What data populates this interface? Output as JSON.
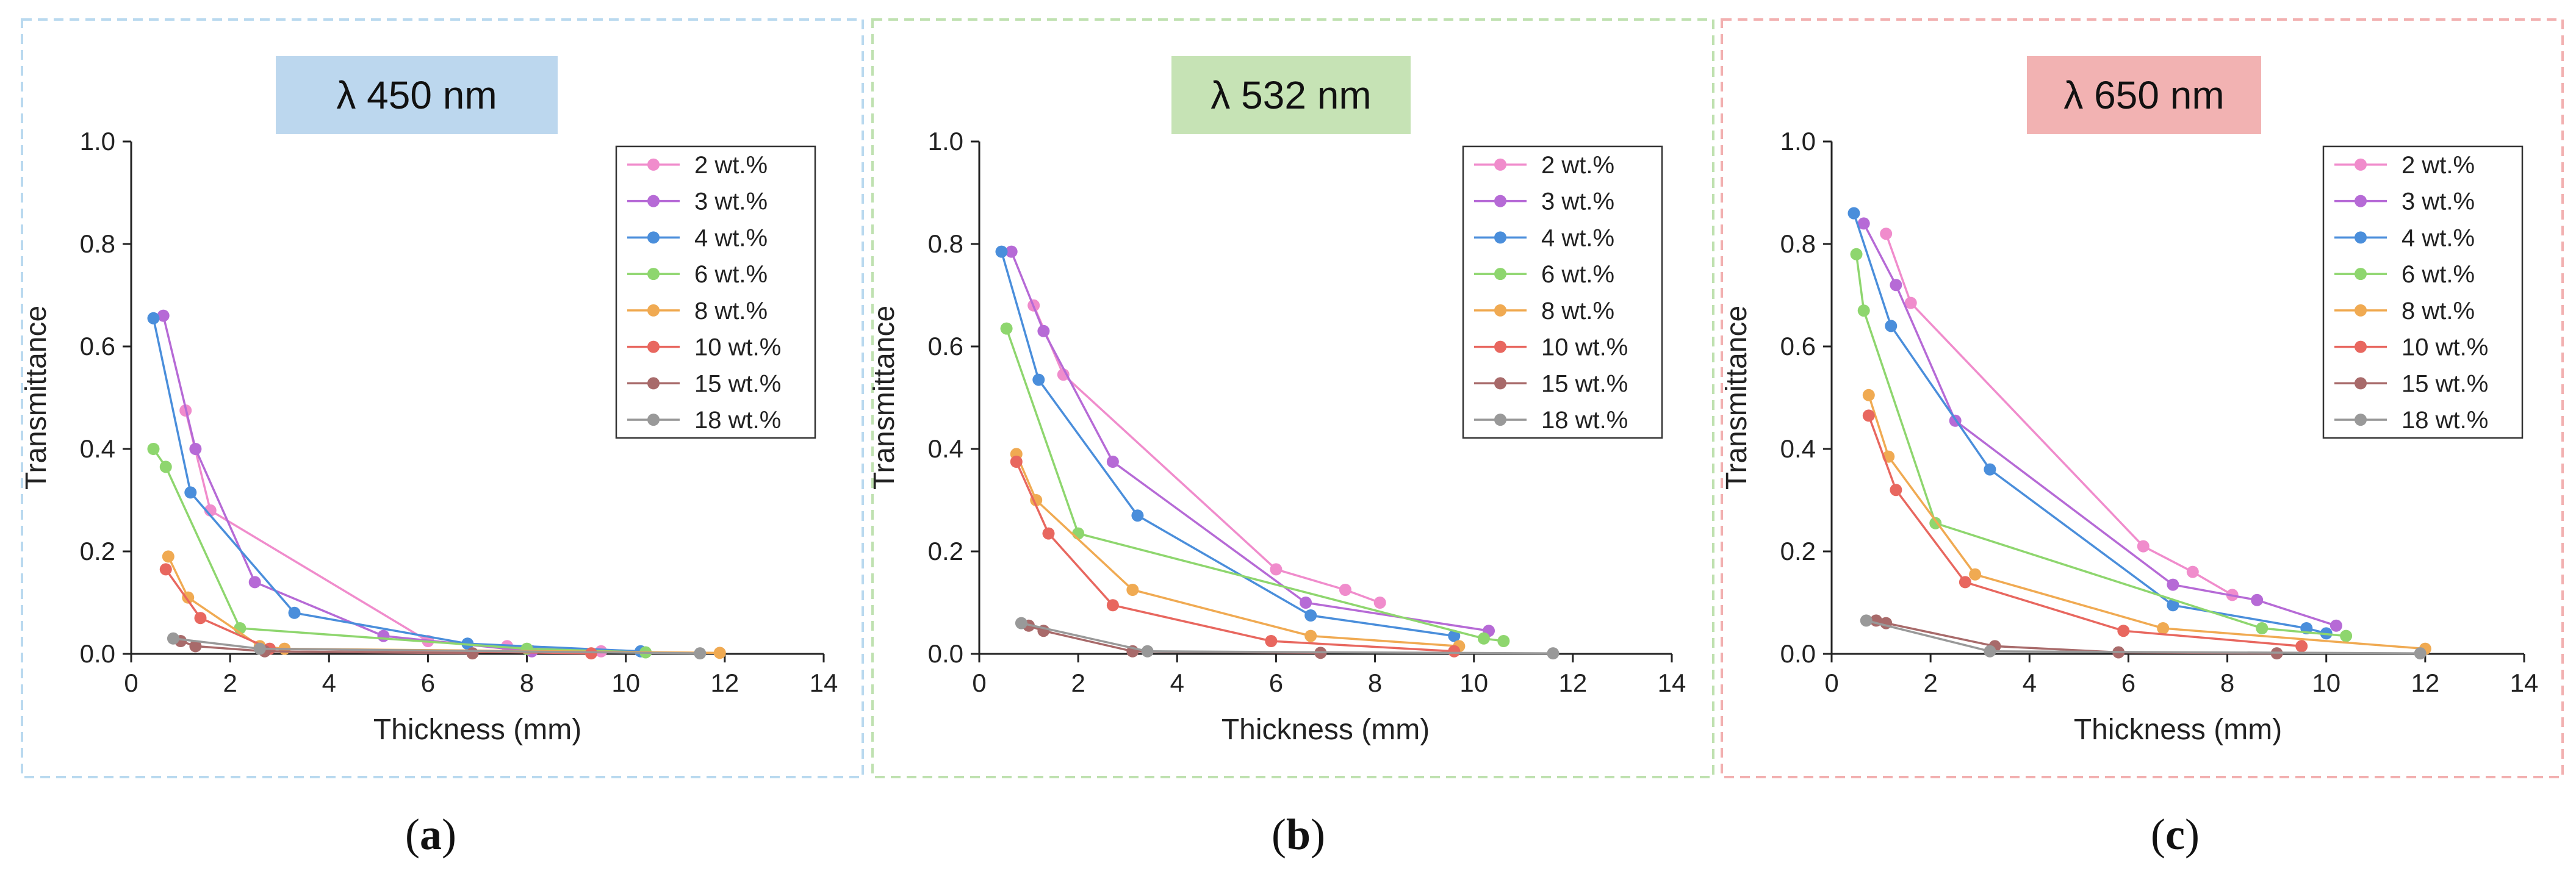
{
  "figure": {
    "panels": [
      {
        "label_open": "(",
        "label_letter": "a",
        "label_close": ")",
        "frame_color": "#b9d9ef",
        "title_bg": "#bcd7ee"
      },
      {
        "label_open": "(",
        "label_letter": "b",
        "label_close": ")",
        "frame_color": "#bfe1b0",
        "title_bg": "#c6e3b5"
      },
      {
        "label_open": "(",
        "label_letter": "c",
        "label_close": ")",
        "frame_color": "#f2b0b0",
        "title_bg": "#f2b2b2"
      }
    ]
  },
  "chart_data": [
    {
      "type": "line",
      "title": "λ 450 nm",
      "xlabel": "Thickness (mm)",
      "ylabel": "Transmittance",
      "xlim": [
        0,
        14
      ],
      "ylim": [
        0,
        1.0
      ],
      "xticks": [
        "0",
        "2",
        "4",
        "6",
        "8",
        "10",
        "12",
        "14"
      ],
      "yticks": [
        "0.0",
        "0.2",
        "0.4",
        "0.6",
        "0.8",
        "1.0"
      ],
      "legend_position": "top-right",
      "series": [
        {
          "name": "2 wt.%",
          "color": "#f08ccc",
          "x": [
            1.1,
            1.6,
            6.0,
            7.6,
            9.5
          ],
          "y": [
            0.475,
            0.28,
            0.025,
            0.015,
            0.005
          ]
        },
        {
          "name": "3 wt.%",
          "color": "#b66ad6",
          "x": [
            0.65,
            1.3,
            2.5,
            5.1,
            8.1
          ],
          "y": [
            0.66,
            0.4,
            0.14,
            0.035,
            0.005
          ]
        },
        {
          "name": "4 wt.%",
          "color": "#4a8edb",
          "x": [
            0.45,
            1.2,
            3.3,
            6.8,
            10.3
          ],
          "y": [
            0.655,
            0.315,
            0.08,
            0.02,
            0.005
          ]
        },
        {
          "name": "6 wt.%",
          "color": "#8ed66e",
          "x": [
            0.45,
            0.7,
            2.2,
            8.0,
            10.4
          ],
          "y": [
            0.4,
            0.365,
            0.05,
            0.01,
            0.003
          ]
        },
        {
          "name": "8 wt.%",
          "color": "#f0aa52",
          "x": [
            0.75,
            1.15,
            2.6,
            3.1,
            11.9
          ],
          "y": [
            0.19,
            0.11,
            0.015,
            0.01,
            0.002
          ]
        },
        {
          "name": "10 wt.%",
          "color": "#e8675f",
          "x": [
            0.7,
            1.4,
            2.8,
            9.3
          ],
          "y": [
            0.165,
            0.07,
            0.01,
            0.001
          ]
        },
        {
          "name": "15 wt.%",
          "color": "#a86a6a",
          "x": [
            1.0,
            1.3,
            2.7,
            6.9
          ],
          "y": [
            0.025,
            0.015,
            0.005,
            0.001
          ]
        },
        {
          "name": "18 wt.%",
          "color": "#999999",
          "x": [
            0.85,
            2.6,
            11.5
          ],
          "y": [
            0.03,
            0.01,
            0.001
          ]
        }
      ]
    },
    {
      "type": "line",
      "title": "λ 532 nm",
      "xlabel": "Thickness (mm)",
      "ylabel": "Transmittance",
      "xlim": [
        0,
        14
      ],
      "ylim": [
        0,
        1.0
      ],
      "xticks": [
        "0",
        "2",
        "4",
        "6",
        "8",
        "10",
        "12",
        "14"
      ],
      "yticks": [
        "0.0",
        "0.2",
        "0.4",
        "0.6",
        "0.8",
        "1.0"
      ],
      "legend_position": "top-right",
      "series": [
        {
          "name": "2 wt.%",
          "color": "#f08ccc",
          "x": [
            1.1,
            1.7,
            6.0,
            7.4,
            8.1
          ],
          "y": [
            0.68,
            0.545,
            0.165,
            0.125,
            0.1
          ]
        },
        {
          "name": "3 wt.%",
          "color": "#b66ad6",
          "x": [
            0.65,
            1.3,
            2.7,
            6.6,
            10.3
          ],
          "y": [
            0.785,
            0.63,
            0.375,
            0.1,
            0.045
          ]
        },
        {
          "name": "4 wt.%",
          "color": "#4a8edb",
          "x": [
            0.45,
            1.2,
            3.2,
            6.7,
            9.6
          ],
          "y": [
            0.785,
            0.535,
            0.27,
            0.075,
            0.035
          ]
        },
        {
          "name": "6 wt.%",
          "color": "#8ed66e",
          "x": [
            0.55,
            2.0,
            10.2,
            10.6
          ],
          "y": [
            0.635,
            0.235,
            0.03,
            0.025
          ]
        },
        {
          "name": "8 wt.%",
          "color": "#f0aa52",
          "x": [
            0.75,
            1.15,
            3.1,
            6.7,
            9.7
          ],
          "y": [
            0.39,
            0.3,
            0.125,
            0.035,
            0.015
          ]
        },
        {
          "name": "10 wt.%",
          "color": "#e8675f",
          "x": [
            0.75,
            1.4,
            2.7,
            5.9,
            9.6
          ],
          "y": [
            0.375,
            0.235,
            0.095,
            0.025,
            0.005
          ]
        },
        {
          "name": "15 wt.%",
          "color": "#a86a6a",
          "x": [
            1.0,
            1.3,
            3.1,
            6.9
          ],
          "y": [
            0.055,
            0.045,
            0.005,
            0.002
          ]
        },
        {
          "name": "18 wt.%",
          "color": "#999999",
          "x": [
            0.85,
            3.4,
            11.6
          ],
          "y": [
            0.06,
            0.005,
            0.001
          ]
        }
      ]
    },
    {
      "type": "line",
      "title": "λ 650 nm",
      "xlabel": "Thickness (mm)",
      "ylabel": "Transmittance",
      "xlim": [
        0,
        14
      ],
      "ylim": [
        0,
        1.0
      ],
      "xticks": [
        "0",
        "2",
        "4",
        "6",
        "8",
        "10",
        "12",
        "14"
      ],
      "yticks": [
        "0.0",
        "0.2",
        "0.4",
        "0.6",
        "0.8",
        "1.0"
      ],
      "legend_position": "top-right",
      "series": [
        {
          "name": "2 wt.%",
          "color": "#f08ccc",
          "x": [
            1.1,
            1.6,
            6.3,
            7.3,
            8.1
          ],
          "y": [
            0.82,
            0.685,
            0.21,
            0.16,
            0.115
          ]
        },
        {
          "name": "3 wt.%",
          "color": "#b66ad6",
          "x": [
            0.65,
            1.3,
            2.5,
            6.9,
            8.6,
            10.2
          ],
          "y": [
            0.84,
            0.72,
            0.455,
            0.135,
            0.105,
            0.055
          ]
        },
        {
          "name": "4 wt.%",
          "color": "#4a8edb",
          "x": [
            0.45,
            1.2,
            3.2,
            6.9,
            9.6,
            10.0
          ],
          "y": [
            0.86,
            0.64,
            0.36,
            0.095,
            0.05,
            0.04
          ]
        },
        {
          "name": "6 wt.%",
          "color": "#8ed66e",
          "x": [
            0.5,
            0.65,
            2.1,
            8.7,
            10.4
          ],
          "y": [
            0.78,
            0.67,
            0.255,
            0.05,
            0.035
          ]
        },
        {
          "name": "8 wt.%",
          "color": "#f0aa52",
          "x": [
            0.75,
            1.15,
            2.9,
            6.7,
            12.0
          ],
          "y": [
            0.505,
            0.385,
            0.155,
            0.05,
            0.01
          ]
        },
        {
          "name": "10 wt.%",
          "color": "#e8675f",
          "x": [
            0.75,
            1.3,
            2.7,
            5.9,
            9.5
          ],
          "y": [
            0.465,
            0.32,
            0.14,
            0.045,
            0.015
          ]
        },
        {
          "name": "15 wt.%",
          "color": "#a86a6a",
          "x": [
            0.9,
            1.1,
            3.3,
            5.8,
            9.0
          ],
          "y": [
            0.065,
            0.06,
            0.015,
            0.003,
            0.001
          ]
        },
        {
          "name": "18 wt.%",
          "color": "#999999",
          "x": [
            0.7,
            3.2,
            11.9
          ],
          "y": [
            0.065,
            0.005,
            0.001
          ]
        }
      ]
    }
  ]
}
